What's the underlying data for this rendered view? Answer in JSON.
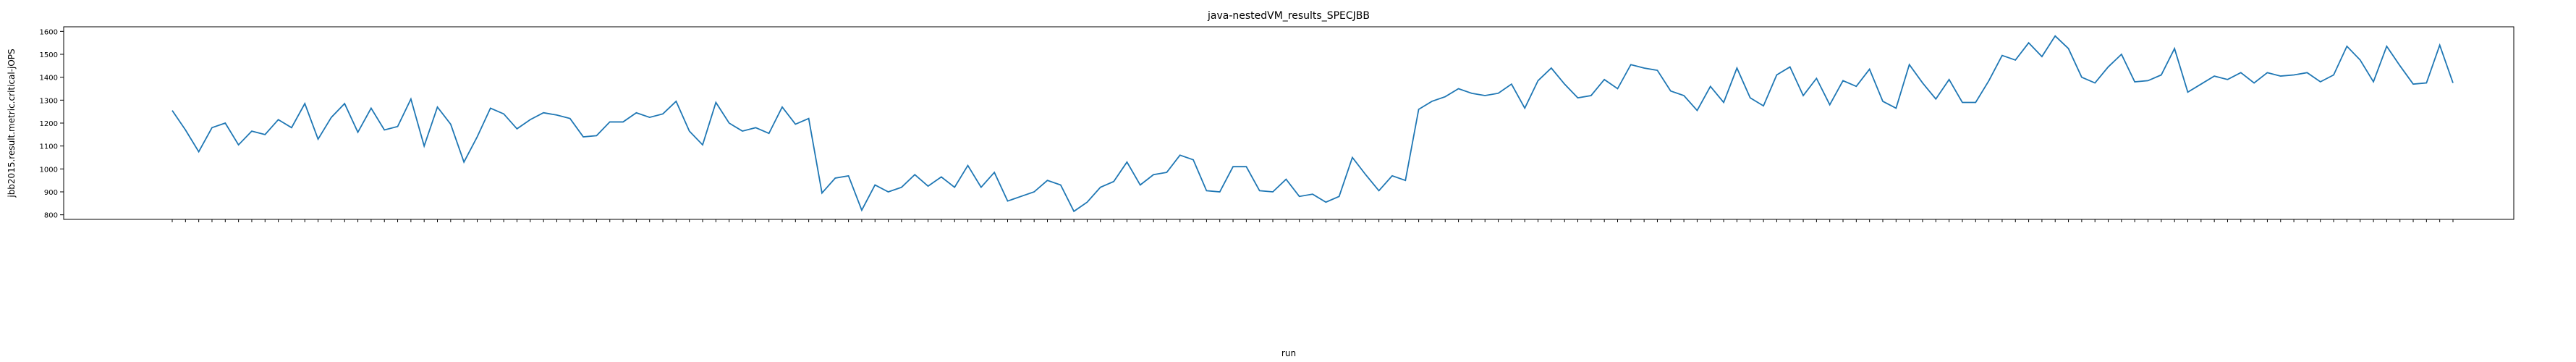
{
  "chart_data": {
    "type": "line",
    "title": "java-nestedVM_results_SPECJBB",
    "xlabel": "run",
    "ylabel": "jbb2015.result.metric.critical-jOPS",
    "ylim": [
      780,
      1620
    ],
    "yticks": [
      800,
      900,
      1000,
      1100,
      1200,
      1300,
      1400,
      1500,
      1600
    ],
    "grid": false,
    "legend": "none",
    "line_color": "#1f77b4",
    "series": [
      {
        "values": [
          1255,
          1170,
          1075,
          1180,
          1200,
          1105,
          1165,
          1150,
          1215,
          1180,
          1285,
          1130,
          1225,
          1285,
          1160,
          1265,
          1170,
          1185,
          1305,
          1100,
          1270,
          1195,
          1030,
          1140,
          1265,
          1240,
          1175,
          1215,
          1245,
          1235,
          1220,
          1140,
          1145,
          1205,
          1205,
          1245,
          1225,
          1240,
          1295,
          1165,
          1105,
          1290,
          1200,
          1165,
          1180,
          1155,
          1270,
          1195,
          1220,
          895,
          960,
          970,
          820,
          930,
          900,
          920,
          975,
          925,
          965,
          920,
          1015,
          920,
          985,
          860,
          880,
          900,
          950,
          930,
          815,
          855,
          920,
          945,
          1030,
          930,
          975,
          985,
          1060,
          1040,
          905,
          900,
          1010,
          1010,
          905,
          900,
          955,
          880,
          890,
          855,
          880,
          1050,
          975,
          905,
          970,
          950,
          1260,
          1295,
          1315,
          1350,
          1330,
          1320,
          1330,
          1370,
          1265,
          1385,
          1440,
          1370,
          1310,
          1320,
          1390,
          1350,
          1455,
          1440,
          1430,
          1340,
          1320,
          1255,
          1360,
          1290,
          1440,
          1310,
          1275,
          1410,
          1445,
          1320,
          1395,
          1280,
          1385,
          1360,
          1435,
          1295,
          1265,
          1455,
          1375,
          1305,
          1390,
          1290,
          1290,
          1385,
          1495,
          1475,
          1550,
          1490,
          1580,
          1525,
          1400,
          1375,
          1445,
          1500,
          1380,
          1385,
          1410,
          1525,
          1335,
          1370,
          1405,
          1390,
          1420,
          1375,
          1420,
          1405,
          1410,
          1420,
          1380,
          1410,
          1535,
          1475,
          1380,
          1535,
          1450,
          1370,
          1375,
          1540,
          1375
        ]
      }
    ]
  }
}
